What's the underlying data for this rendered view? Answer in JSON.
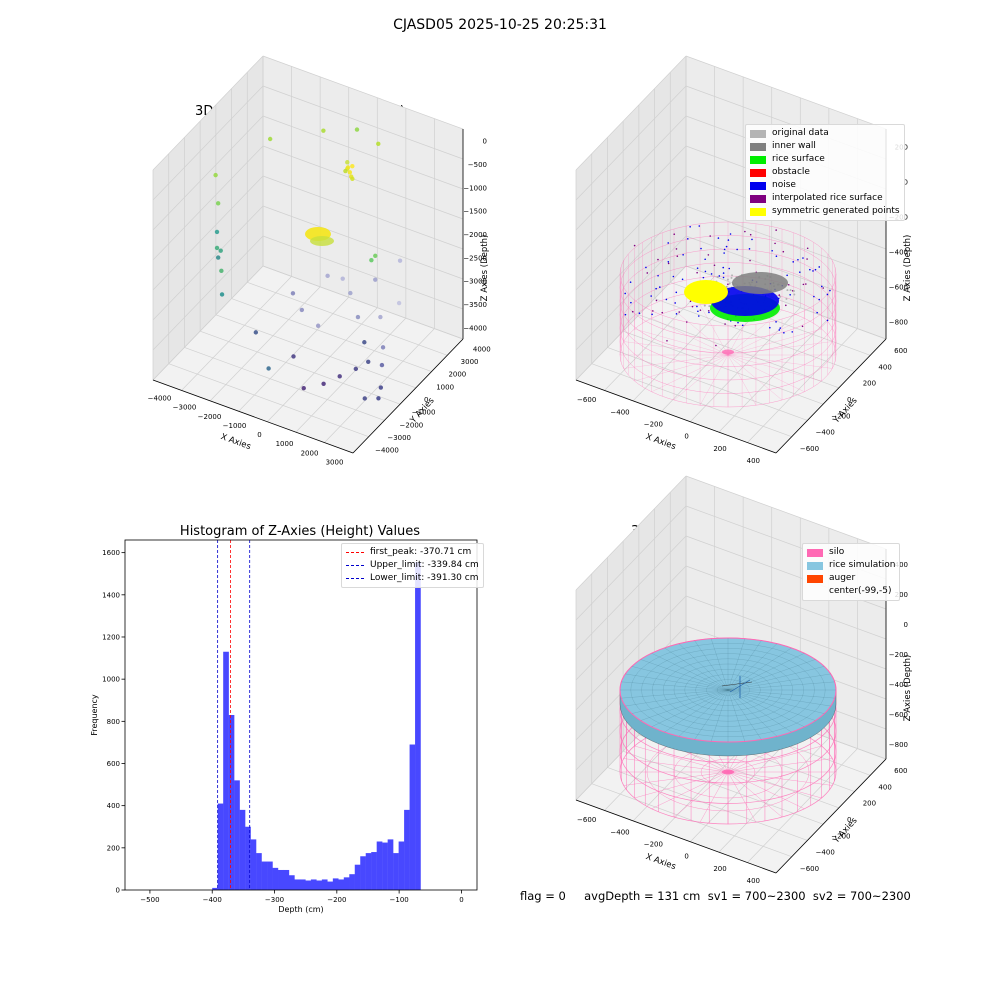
{
  "suptitle": "CJASD05 2025-10-25 20:25:31",
  "status_line": "flag = 0     avgDepth = 131 cm  sv1 = 700~2300  sv2 = 700~2300",
  "colors": {
    "hist_bar": "#4848ff",
    "first_peak": "#ff0000",
    "limit": "#0000cc",
    "silo": "#ff69b4",
    "rice": "#87c6e0",
    "auger": "#ff4500",
    "original": "#b4b4b4",
    "inner_wall": "#808080",
    "rice_surface": "#00ee00",
    "obstacle": "#ff0000",
    "noise": "#0000ee",
    "interpolated": "#800080",
    "symmetric": "#ffff00"
  },
  "chart_data": [
    {
      "type": "scatter",
      "title": "3D Plot of Silo Interior(row data)",
      "xlabel": "X Axies",
      "ylabel": "Y Axies",
      "zlabel": "Z Axies (Depth)",
      "x_ticks": [
        "−4000",
        "−3000",
        "−2000",
        "−1000",
        "0",
        "1000",
        "2000",
        "3000"
      ],
      "y_ticks": [
        "−4000",
        "−3000",
        "−2000",
        "−1000",
        "0",
        "1000",
        "2000",
        "3000",
        "4000"
      ],
      "z_ticks": [
        "−4000",
        "−3500",
        "−3000",
        "−2500",
        "−2000",
        "−1500",
        "−1000",
        "−500",
        "0"
      ],
      "xlim": [
        -4500,
        3500
      ],
      "ylim": [
        -4500,
        4500
      ],
      "zlim": [
        -4200,
        200
      ],
      "points": [
        {
          "x": -200,
          "y": 2600,
          "z": -700,
          "c": "#c8e03c"
        },
        {
          "x": -150,
          "y": 2500,
          "z": -800,
          "c": "#dde328"
        },
        {
          "x": -100,
          "y": 2450,
          "z": -750,
          "c": "#f0e61e"
        },
        {
          "x": 0,
          "y": 2400,
          "z": -820,
          "c": "#f5e61a"
        },
        {
          "x": 80,
          "y": 2350,
          "z": -880,
          "c": "#e6e31f"
        },
        {
          "x": 150,
          "y": 2300,
          "z": -900,
          "c": "#d2e021"
        },
        {
          "x": -250,
          "y": 2550,
          "z": -880,
          "c": "#bfdd2b"
        },
        {
          "x": 60,
          "y": 2480,
          "z": -700,
          "c": "#fde725"
        },
        {
          "x": -3700,
          "y": -900,
          "z": -1900,
          "c": "#2a9d8f"
        },
        {
          "x": -3600,
          "y": -800,
          "z": -2300,
          "c": "#35a380"
        },
        {
          "x": -3750,
          "y": -700,
          "z": -2500,
          "c": "#2c8a8a"
        },
        {
          "x": -3650,
          "y": -1000,
          "z": -2200,
          "c": "#3cab7a"
        },
        {
          "x": -3550,
          "y": -850,
          "z": -2700,
          "c": "#48b26f"
        },
        {
          "x": -3800,
          "y": -600,
          "z": -1400,
          "c": "#7ad151"
        },
        {
          "x": -3400,
          "y": -1100,
          "z": -3100,
          "c": "#218f8d"
        },
        {
          "x": -4000,
          "y": -400,
          "z": -900,
          "c": "#95d840"
        },
        {
          "x": -2600,
          "y": 1200,
          "z": -300,
          "c": "#a0da39"
        },
        {
          "x": -1400,
          "y": 3100,
          "z": -400,
          "c": "#aadc32"
        },
        {
          "x": -300,
          "y": 3600,
          "z": -300,
          "c": "#8fd744"
        },
        {
          "x": 600,
          "y": 3500,
          "z": -400,
          "c": "#b5de2b"
        },
        {
          "x": 1400,
          "y": 1300,
          "z": -2100,
          "c": "#5ec962"
        },
        {
          "x": 1800,
          "y": 800,
          "z": -1800,
          "c": "#6ccd5a"
        },
        {
          "x": -2000,
          "y": -1200,
          "z": -3600,
          "c": "#3b528b"
        },
        {
          "x": -1000,
          "y": -2200,
          "z": -3900,
          "c": "#31688e"
        },
        {
          "x": -200,
          "y": -1800,
          "z": -3600,
          "c": "#443983"
        },
        {
          "x": 600,
          "y": -2600,
          "z": -3900,
          "c": "#482878"
        },
        {
          "x": 1200,
          "y": -2200,
          "z": -3800,
          "c": "#472c7a"
        },
        {
          "x": 1600,
          "y": -1700,
          "z": -3700,
          "c": "#46337f"
        },
        {
          "x": 2000,
          "y": -1200,
          "z": -3600,
          "c": "#433e85"
        },
        {
          "x": 2300,
          "y": -800,
          "z": -3500,
          "c": "#404688"
        },
        {
          "x": 1900,
          "y": -300,
          "z": -3300,
          "c": "#3e4c8a"
        },
        {
          "x": 1400,
          "y": 200,
          "z": -3000,
          "c": "#8a8ec0"
        },
        {
          "x": 900,
          "y": 600,
          "z": -2700,
          "c": "#9fa2cd"
        },
        {
          "x": 400,
          "y": 1000,
          "z": -2600,
          "c": "#b2b3d8"
        },
        {
          "x": -400,
          "y": 1400,
          "z": -2800,
          "c": "#a5a6d0"
        },
        {
          "x": 1800,
          "y": 800,
          "z": -2300,
          "c": "#9c9fcb"
        },
        {
          "x": 2200,
          "y": 400,
          "z": -2900,
          "c": "#a3a4cf"
        },
        {
          "x": 2600,
          "y": -200,
          "z": -3300,
          "c": "#7e80b8"
        },
        {
          "x": 2800,
          "y": -700,
          "z": -3500,
          "c": "#5d5fa3"
        },
        {
          "x": 3000,
          "y": -1200,
          "z": -3800,
          "c": "#3e4089"
        },
        {
          "x": 3100,
          "y": -1600,
          "z": -3900,
          "c": "#3b3e87"
        },
        {
          "x": 2700,
          "y": -1900,
          "z": -3900,
          "c": "#414487"
        },
        {
          "x": 200,
          "y": -600,
          "z": -3200,
          "c": "#9697c6"
        },
        {
          "x": -600,
          "y": -300,
          "z": -3100,
          "c": "#8a8bbf"
        },
        {
          "x": -1200,
          "y": 200,
          "z": -3000,
          "c": "#7f81b9"
        },
        {
          "x": 2400,
          "y": 1600,
          "z": -2000,
          "c": "#b5b6da"
        },
        {
          "x": 2900,
          "y": 500,
          "z": -2500,
          "c": "#c0c1df"
        }
      ]
    },
    {
      "type": "scatter",
      "title": "3D classify of Silo Interior",
      "xlabel": "X Axies",
      "ylabel": "Y Axies",
      "zlabel": "Z Axies (Depth)",
      "x_ticks": [
        "−600",
        "−400",
        "−200",
        "0",
        "200",
        "400"
      ],
      "y_ticks": [
        "−600",
        "−400",
        "−200",
        "0",
        "200",
        "400",
        "600"
      ],
      "z_ticks": [
        "−800",
        "−600",
        "−400",
        "−200",
        "0",
        "200"
      ],
      "legend": [
        "original data",
        "inner wall",
        "rice surface",
        "obstacle",
        "noise",
        "interpolated rice surface",
        "symmetric generated points"
      ],
      "legend_placement": "upper-right"
    },
    {
      "type": "bar",
      "title": "Histogram of Z-Axies (Height) Values",
      "xlabel": "Depth (cm)",
      "ylabel": "Frequency",
      "xlim": [
        -540,
        25
      ],
      "ylim": [
        0,
        1660
      ],
      "x_ticks": [
        -500,
        -400,
        -300,
        -200,
        -100,
        0
      ],
      "y_ticks": [
        0,
        200,
        400,
        600,
        800,
        1000,
        1200,
        1400,
        1600
      ],
      "bin_start": -400,
      "bin_width": 8.8,
      "values": [
        10,
        410,
        1130,
        830,
        520,
        380,
        300,
        240,
        175,
        135,
        135,
        105,
        95,
        95,
        70,
        50,
        50,
        45,
        50,
        45,
        50,
        40,
        55,
        50,
        60,
        75,
        120,
        160,
        175,
        180,
        230,
        225,
        240,
        175,
        230,
        380,
        690,
        1555
      ],
      "lines": [
        {
          "label": "first_peak: -370.71 cm",
          "x": -370.71,
          "color": "#ff0000"
        },
        {
          "label": "Upper_limit: -339.84 cm",
          "x": -339.84,
          "color": "#0000cc"
        },
        {
          "label": "Lower_limit: -391.30 cm",
          "x": -391.3,
          "color": "#0000cc"
        }
      ],
      "legend_placement": "upper-right"
    },
    {
      "type": "area",
      "title": "3D simulation of Silo Interior",
      "xlabel": "X Axies",
      "ylabel": "Y Axies",
      "zlabel": "Z Axies (Depth)",
      "x_ticks": [
        "−600",
        "−400",
        "−200",
        "0",
        "200",
        "400"
      ],
      "y_ticks": [
        "−600",
        "−400",
        "−200",
        "0",
        "200",
        "400",
        "600"
      ],
      "z_ticks": [
        "−800",
        "−600",
        "−400",
        "−200",
        "0",
        "200",
        "400"
      ],
      "legend": [
        "silo",
        "rice simulation",
        "auger",
        "center(-99,-5)"
      ],
      "legend_placement": "upper-right"
    }
  ]
}
